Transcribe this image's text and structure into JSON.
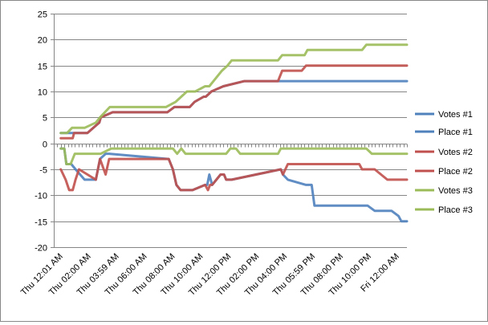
{
  "chart_data": {
    "type": "line",
    "title": "",
    "xlabel": "",
    "ylabel": "",
    "ylim": [
      -20,
      25
    ],
    "yticks": [
      25,
      20,
      15,
      10,
      5,
      0,
      -5,
      -10,
      -15,
      -20
    ],
    "grid": "horizontal",
    "legend_position": "right",
    "x_tick_labels": [
      "Thu 12:01 AM",
      "Thu 02:00 AM",
      "Thu 03:59 AM",
      "Thu 06:00 AM",
      "Thu 08:00 AM",
      "Thu 10:00 AM",
      "Thu 12:00 PM",
      "Thu 02:00 PM",
      "Thu 04:00 PM",
      "Thu 05:59 PM",
      "Thu 08:00 PM",
      "Thu 10:00 PM",
      "Fri 12:00 AM"
    ],
    "x_hours": [
      0,
      2,
      4,
      6,
      8,
      10,
      12,
      14,
      16,
      18,
      20,
      22,
      24
    ],
    "x_range_hours": [
      -0.5,
      24.7
    ],
    "series": [
      {
        "name": "Votes #1",
        "color": "#4F81BD",
        "x": [
          0,
          0.4,
          0.85,
          0.95,
          1.9,
          2.75,
          2.85,
          3.7,
          7.6,
          8.1,
          9.2,
          9.55,
          10.2,
          10.35,
          10.75,
          11.6,
          13.1,
          15.5,
          24.7
        ],
        "y": [
          2,
          2,
          2,
          2,
          2,
          4,
          5,
          6,
          6,
          7,
          7,
          8,
          9,
          9,
          10,
          11,
          12,
          12,
          12
        ]
      },
      {
        "name": "Place #1",
        "color": "#4F81BD",
        "x": [
          0,
          0.25,
          0.4,
          0.75,
          1.05,
          1.7,
          2.5,
          2.8,
          3.2,
          3.45,
          7.7,
          8.0,
          8.25,
          8.55,
          9.4,
          10.3,
          10.45,
          10.6,
          10.8,
          11.4,
          11.65,
          11.8,
          12.2,
          15.7,
          15.85,
          16.2,
          17.5,
          17.9,
          18.1,
          21.9,
          22.4,
          23.6,
          24.1,
          24.3,
          24.7
        ],
        "y": [
          -1,
          -1,
          -4,
          -4,
          -5,
          -7,
          -7,
          -3,
          -2,
          -2,
          -3,
          -5,
          -8,
          -9,
          -9,
          -8,
          -8,
          -6,
          -8,
          -6,
          -6,
          -7,
          -7,
          -5,
          -6,
          -7,
          -8,
          -8,
          -12,
          -12,
          -13,
          -13,
          -14,
          -15,
          -15
        ]
      },
      {
        "name": "Votes #2",
        "color": "#C0504D",
        "x": [
          0,
          0.4,
          0.85,
          0.95,
          1.9,
          2.75,
          2.85,
          3.7,
          7.6,
          8.1,
          9.2,
          9.55,
          10.2,
          10.35,
          10.75,
          11.6,
          13.1,
          15.5,
          15.8,
          17.2,
          17.5,
          24.7
        ],
        "y": [
          1,
          1,
          1,
          2,
          2,
          4,
          5,
          6,
          6,
          7,
          7,
          8,
          9,
          9,
          10,
          11,
          12,
          12,
          14,
          14,
          15,
          15
        ]
      },
      {
        "name": "Place #2",
        "color": "#C0504D",
        "x": [
          0,
          0.35,
          0.6,
          0.85,
          1.05,
          1.3,
          2.5,
          2.8,
          3.2,
          3.45,
          7.7,
          8.0,
          8.25,
          8.55,
          9.4,
          10.3,
          10.5,
          10.65,
          10.8,
          11.4,
          11.65,
          11.8,
          12.2,
          15.7,
          15.85,
          16.2,
          21.3,
          21.5,
          22.4,
          23.3,
          23.6,
          24.7
        ],
        "y": [
          -5,
          -7,
          -9,
          -9,
          -7,
          -5,
          -7,
          -3,
          -6,
          -3,
          -3,
          -5,
          -8,
          -9,
          -9,
          -8,
          -9,
          -8,
          -8,
          -6,
          -6,
          -7,
          -7,
          -5,
          -6,
          -4,
          -4,
          -5,
          -5,
          -7,
          -7,
          -7
        ]
      },
      {
        "name": "Votes #3",
        "color": "#9BBB59",
        "x": [
          0,
          0.45,
          0.8,
          1.7,
          2.5,
          2.8,
          3.5,
          7.5,
          8.2,
          9.0,
          9.6,
          10.3,
          10.6,
          10.9,
          11.5,
          11.9,
          12.2,
          15.5,
          15.8,
          17.4,
          17.6,
          21.5,
          21.8,
          24.7
        ],
        "y": [
          2,
          2,
          3,
          3,
          4,
          5,
          7,
          7,
          8,
          10,
          10,
          11,
          11,
          12,
          14,
          15,
          16,
          16,
          17,
          17,
          18,
          18,
          19,
          19
        ]
      },
      {
        "name": "Place #3",
        "color": "#9BBB59",
        "x": [
          0,
          0.25,
          0.4,
          0.7,
          1.0,
          2.5,
          2.85,
          3.6,
          8.0,
          8.3,
          8.6,
          8.9,
          11.8,
          12.1,
          12.5,
          12.8,
          13.2,
          15.5,
          15.7,
          21.8,
          22.2,
          24.7
        ],
        "y": [
          -1,
          -1,
          -4,
          -4,
          -2,
          -2,
          -2,
          -1,
          -1,
          -2,
          -1,
          -2,
          -2,
          -1,
          -1,
          -2,
          -2,
          -2,
          -1,
          -1,
          -2,
          -2
        ]
      }
    ]
  }
}
